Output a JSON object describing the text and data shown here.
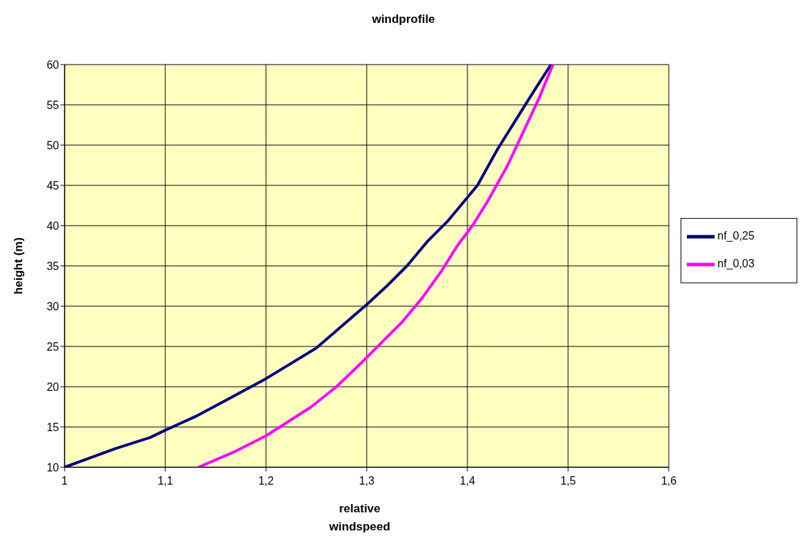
{
  "chart_data": {
    "type": "line",
    "title": "windprofile",
    "xlabel": "relative windspeed",
    "ylabel": "height (m)",
    "xlim": [
      1,
      1.6
    ],
    "xticks": [
      1,
      {
        "value": 1.1,
        "label": "1,1"
      },
      {
        "value": 1.2,
        "label": "1,2"
      },
      {
        "value": 1.3,
        "label": "1,3"
      },
      {
        "value": 1.4,
        "label": "1,4"
      },
      {
        "value": 1.5,
        "label": "1,5"
      },
      {
        "value": 1.6,
        "label": "1,6"
      }
    ],
    "ylim": [
      10,
      60
    ],
    "yticks": [
      10,
      15,
      20,
      25,
      30,
      35,
      40,
      45,
      50,
      55,
      60
    ],
    "grid": true,
    "legend": "right",
    "marker": "none",
    "line_style": "solid",
    "series": [
      {
        "name": "nf_0,25",
        "color": "#000080",
        "x": [
          1.0,
          1.05,
          1.085,
          1.1,
          1.13,
          1.16,
          1.2,
          1.25,
          1.275,
          1.3,
          1.32,
          1.34,
          1.36,
          1.38,
          1.41,
          1.43,
          1.45,
          1.465,
          1.483
        ],
        "values": [
          10,
          12.3,
          13.7,
          14.6,
          16.3,
          18.3,
          21,
          24.8,
          27.5,
          30.2,
          32.5,
          35,
          38,
          40.5,
          45,
          49.5,
          53.5,
          56.5,
          60
        ]
      },
      {
        "name": "nf_0,03",
        "color": "#ff00ff",
        "x": [
          1.133,
          1.17,
          1.2,
          1.22,
          1.245,
          1.27,
          1.295,
          1.315,
          1.335,
          1.355,
          1.375,
          1.39,
          1.405,
          1.42,
          1.44,
          1.455,
          1.47,
          1.485
        ],
        "values": [
          10,
          12,
          13.9,
          15.5,
          17.5,
          20,
          23,
          25.5,
          28,
          31,
          34.5,
          37.5,
          40,
          43,
          47.5,
          51.5,
          55.5,
          60
        ]
      }
    ]
  }
}
